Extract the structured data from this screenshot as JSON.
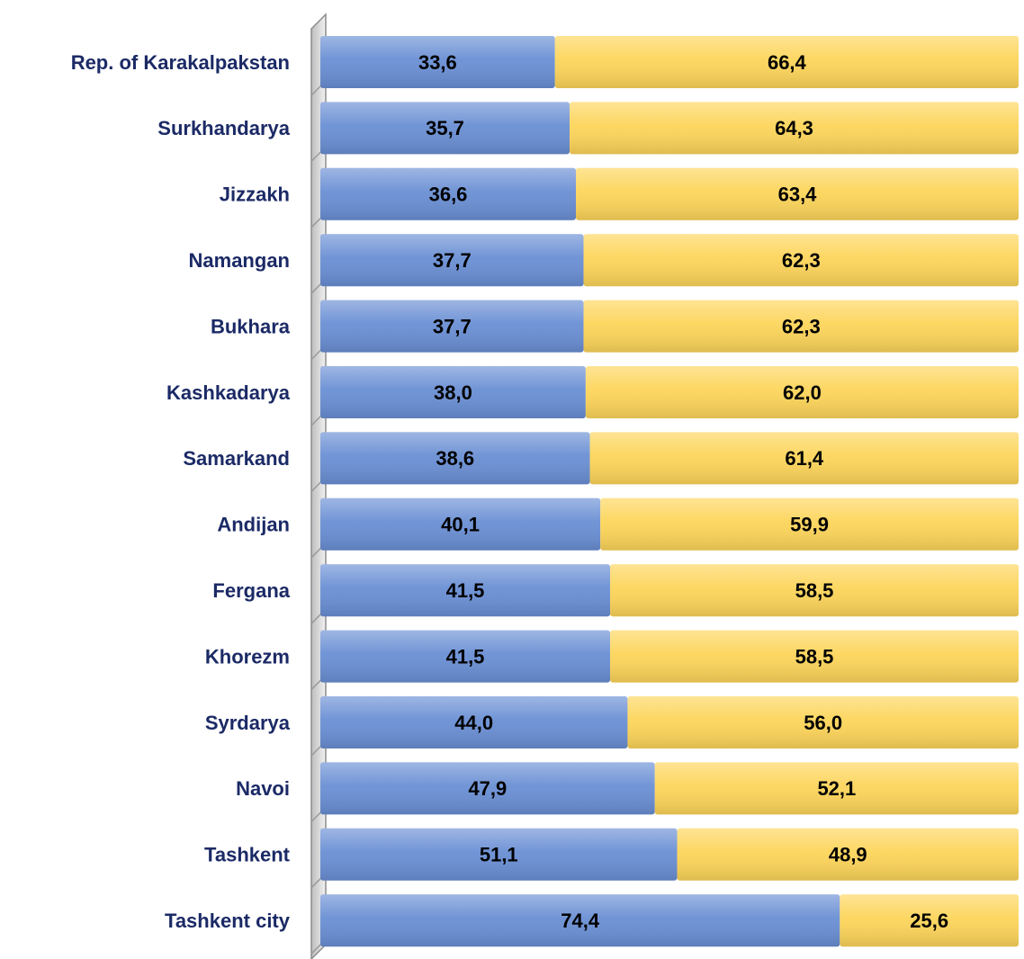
{
  "chart_data": {
    "type": "stacked-bar-horizontal",
    "categories": [
      "Rep. of Karakalpakstan",
      "Surkhandarya",
      "Jizzakh",
      "Namangan",
      "Bukhara",
      "Kashkadarya",
      "Samarkand",
      "Andijan",
      "Fergana",
      "Khorezm",
      "Syrdarya",
      "Navoi",
      "Tashkent",
      "Tashkent city"
    ],
    "series": [
      {
        "color": "#6a8fd4",
        "values": [
          33.6,
          35.7,
          36.6,
          37.7,
          37.7,
          38.0,
          38.6,
          40.1,
          41.5,
          41.5,
          44.0,
          47.9,
          51.1,
          74.4
        ],
        "value_labels": [
          "33,6",
          "35,7",
          "36,6",
          "37,7",
          "37,7",
          "38,0",
          "38,6",
          "40,1",
          "41,5",
          "41,5",
          "44,0",
          "47,9",
          "51,1",
          "74,4"
        ]
      },
      {
        "color": "#fdd55a",
        "values": [
          66.4,
          64.3,
          63.4,
          62.3,
          62.3,
          62.0,
          61.4,
          59.9,
          58.5,
          58.5,
          56.0,
          52.1,
          48.9,
          25.6
        ],
        "value_labels": [
          "66,4",
          "64,3",
          "63,4",
          "62,3",
          "62,3",
          "62,0",
          "61,4",
          "59,9",
          "58,5",
          "58,5",
          "56,0",
          "52,1",
          "48,9",
          "25,6"
        ]
      }
    ],
    "xlim": [
      0,
      100
    ]
  }
}
